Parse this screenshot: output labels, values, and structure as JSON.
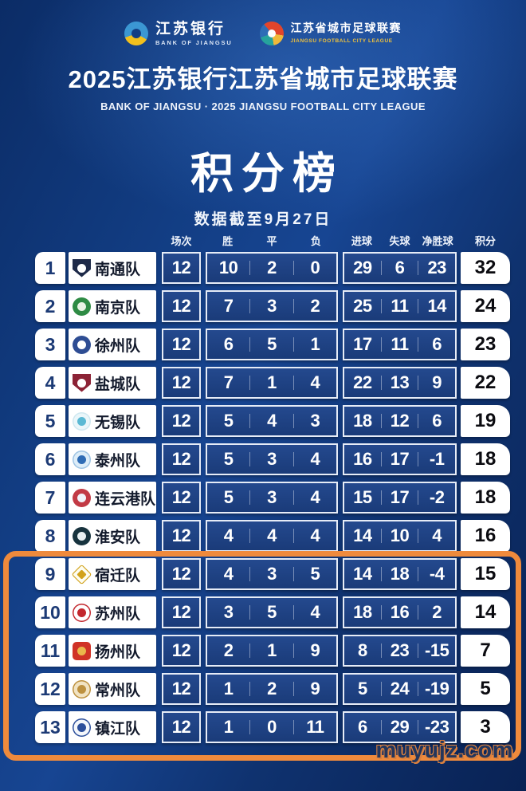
{
  "header": {
    "bank_logo": {
      "zh": "江苏银行",
      "en": "BANK OF JIANGSU"
    },
    "league_logo": {
      "zh": "江苏省城市足球联赛",
      "en": "JIANGSU FOOTBALL CITY LEAGUE"
    },
    "title_zh": "2025江苏银行江苏省城市足球联赛",
    "title_en": "BANK OF JIANGSU · 2025 JIANGSU FOOTBALL CITY LEAGUE"
  },
  "chart_data": {
    "type": "table",
    "title": "积分榜",
    "note": "数据截至9月27日",
    "columns": [
      "场次",
      "胜",
      "平",
      "负",
      "进球",
      "失球",
      "净胜球",
      "积分"
    ],
    "rows": [
      {
        "rank": 1,
        "team": "南通队",
        "played": 12,
        "win": 10,
        "draw": 2,
        "loss": 0,
        "gf": 29,
        "ga": 6,
        "gd": 23,
        "pts": 32
      },
      {
        "rank": 2,
        "team": "南京队",
        "played": 12,
        "win": 7,
        "draw": 3,
        "loss": 2,
        "gf": 25,
        "ga": 11,
        "gd": 14,
        "pts": 24
      },
      {
        "rank": 3,
        "team": "徐州队",
        "played": 12,
        "win": 6,
        "draw": 5,
        "loss": 1,
        "gf": 17,
        "ga": 11,
        "gd": 6,
        "pts": 23
      },
      {
        "rank": 4,
        "team": "盐城队",
        "played": 12,
        "win": 7,
        "draw": 1,
        "loss": 4,
        "gf": 22,
        "ga": 13,
        "gd": 9,
        "pts": 22
      },
      {
        "rank": 5,
        "team": "无锡队",
        "played": 12,
        "win": 5,
        "draw": 4,
        "loss": 3,
        "gf": 18,
        "ga": 12,
        "gd": 6,
        "pts": 19
      },
      {
        "rank": 6,
        "team": "泰州队",
        "played": 12,
        "win": 5,
        "draw": 3,
        "loss": 4,
        "gf": 16,
        "ga": 17,
        "gd": -1,
        "pts": 18
      },
      {
        "rank": 7,
        "team": "连云港队",
        "played": 12,
        "win": 5,
        "draw": 3,
        "loss": 4,
        "gf": 15,
        "ga": 17,
        "gd": -2,
        "pts": 18
      },
      {
        "rank": 8,
        "team": "淮安队",
        "played": 12,
        "win": 4,
        "draw": 4,
        "loss": 4,
        "gf": 14,
        "ga": 10,
        "gd": 4,
        "pts": 16
      },
      {
        "rank": 9,
        "team": "宿迁队",
        "played": 12,
        "win": 4,
        "draw": 3,
        "loss": 5,
        "gf": 14,
        "ga": 18,
        "gd": -4,
        "pts": 15
      },
      {
        "rank": 10,
        "team": "苏州队",
        "played": 12,
        "win": 3,
        "draw": 5,
        "loss": 4,
        "gf": 18,
        "ga": 16,
        "gd": 2,
        "pts": 14
      },
      {
        "rank": 11,
        "team": "扬州队",
        "played": 12,
        "win": 2,
        "draw": 1,
        "loss": 9,
        "gf": 8,
        "ga": 23,
        "gd": -15,
        "pts": 7
      },
      {
        "rank": 12,
        "team": "常州队",
        "played": 12,
        "win": 1,
        "draw": 2,
        "loss": 9,
        "gf": 5,
        "ga": 24,
        "gd": -19,
        "pts": 5
      },
      {
        "rank": 13,
        "team": "镇江队",
        "played": 12,
        "win": 1,
        "draw": 0,
        "loss": 11,
        "gf": 6,
        "ga": 29,
        "gd": -23,
        "pts": 3
      }
    ],
    "highlight": {
      "from_rank": 9,
      "to_rank": 13,
      "color": "#ef8a3c"
    }
  },
  "team_logos": [
    {
      "icon": "nantong-crest-icon",
      "shape": "shield",
      "fill": "#1e2a49",
      "inner": "#ffffff"
    },
    {
      "icon": "nanjing-crest-icon",
      "shape": "circle",
      "fill": "#2e8b44",
      "inner": "#e8f3e4"
    },
    {
      "icon": "xuzhou-crest-icon",
      "shape": "circle",
      "fill": "#2e4d93",
      "inner": "#ffffff"
    },
    {
      "icon": "yancheng-crest-icon",
      "shape": "shield",
      "fill": "#8c2336",
      "inner": "#ffffff"
    },
    {
      "icon": "wuxi-crest-icon",
      "shape": "circle",
      "fill": "#eaf6fa",
      "inner": "#5bb9d4",
      "ring": "#cfe8f0"
    },
    {
      "icon": "taizhou-crest-icon",
      "shape": "circle",
      "fill": "#ddedf8",
      "inner": "#2f6cb5",
      "ring": "#9fc4e4"
    },
    {
      "icon": "lianyungang-crest-icon",
      "shape": "circle",
      "fill": "#c23a45",
      "inner": "#f0f3fa"
    },
    {
      "icon": "huaian-crest-icon",
      "shape": "circle",
      "fill": "#17333e",
      "inner": "#e8f0f2"
    },
    {
      "icon": "suqian-crest-icon",
      "shape": "diamond",
      "fill": "#fdfdf2",
      "inner": "#d2a21c",
      "ring": "#d2a21c"
    },
    {
      "icon": "suzhou-crest-icon",
      "shape": "circle",
      "fill": "#ffffff",
      "inner": "#c3282e",
      "ring": "#c3282e"
    },
    {
      "icon": "yangzhou-crest-icon",
      "shape": "square",
      "fill": "#d03226",
      "inner": "#eab64b"
    },
    {
      "icon": "changzhou-crest-icon",
      "shape": "circle",
      "fill": "#f1e3c3",
      "inner": "#bd9140",
      "ring": "#bd9140"
    },
    {
      "icon": "zhenjiang-crest-icon",
      "shape": "circle",
      "fill": "#f4f7fb",
      "inner": "#2c4f9b",
      "ring": "#2c4f9b"
    }
  ],
  "watermark": "muyujz.com"
}
